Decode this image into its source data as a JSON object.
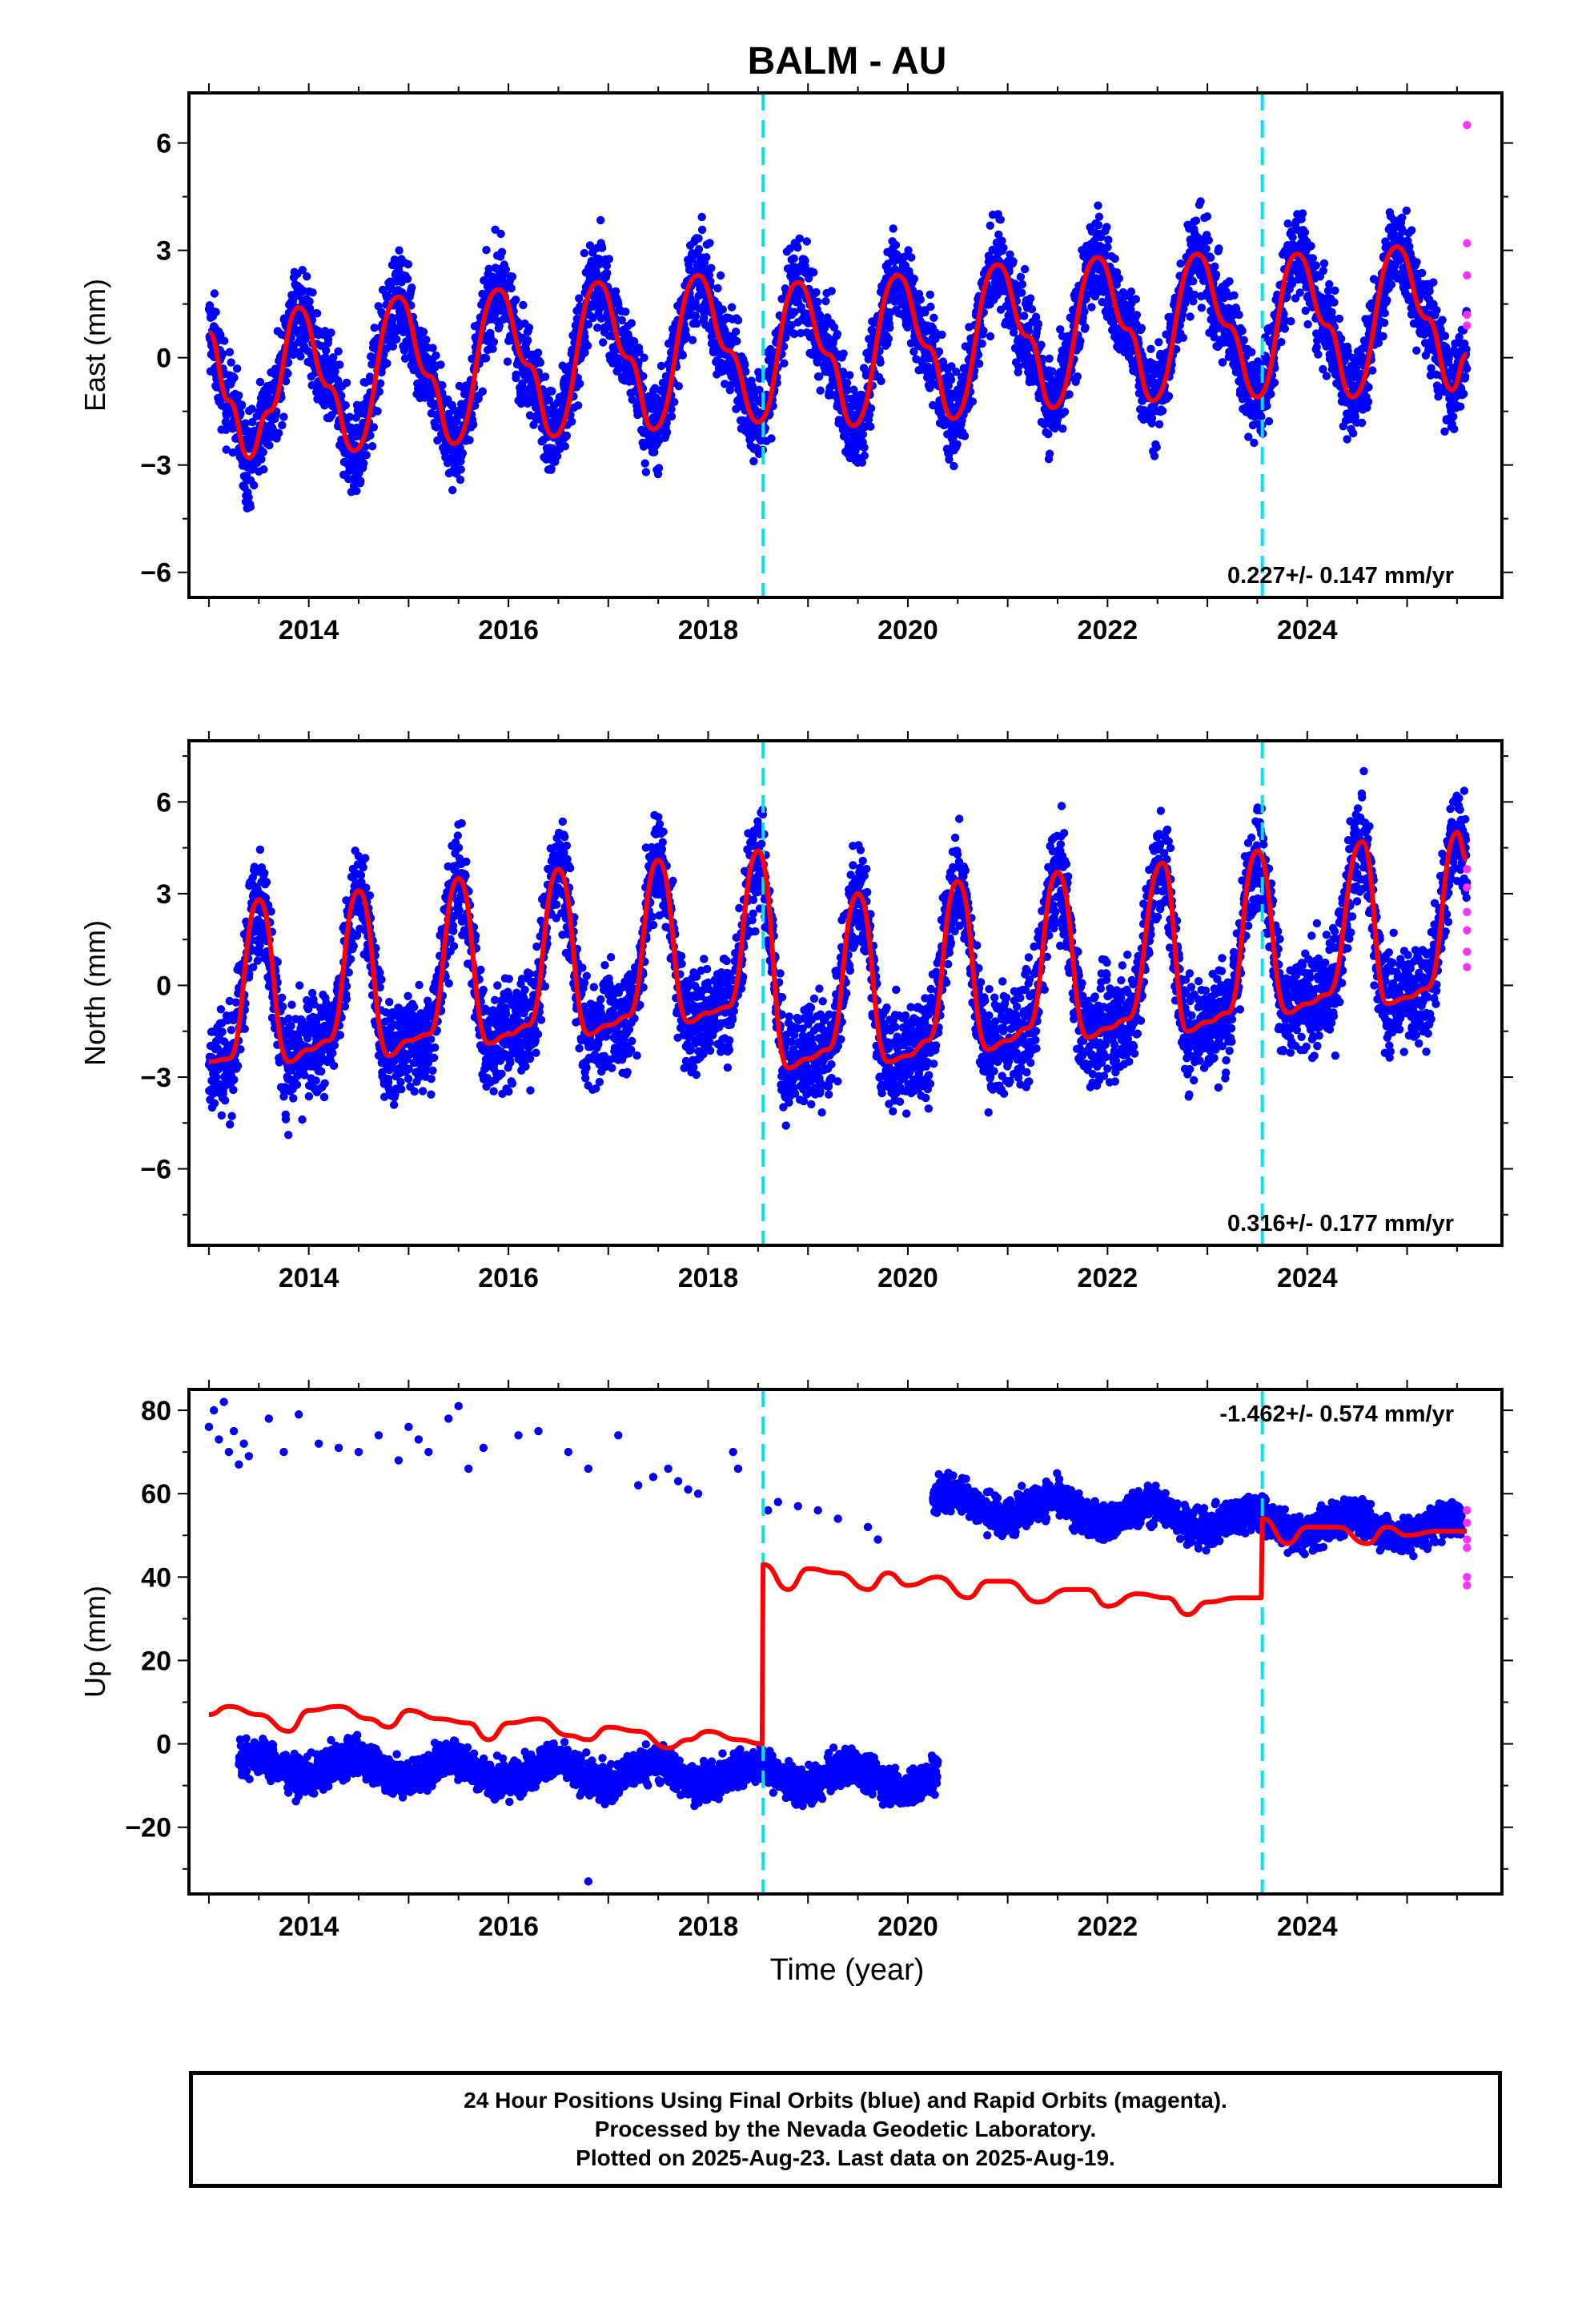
{
  "title": "BALM - AU",
  "xlabel": "Time (year)",
  "colors": {
    "final_orbits": "#0000ff",
    "rapid_orbits": "#ff33ff",
    "model": "#ff0000",
    "offsets": "#00e5ee"
  },
  "footer": {
    "line1": "24 Hour Positions Using Final Orbits (blue) and Rapid Orbits (magenta).",
    "line2": "Processed by the Nevada Geodetic Laboratory.",
    "line3": "Plotted on 2025-Aug-23. Last data on 2025-Aug-19."
  },
  "chart_data": [
    {
      "type": "scatter",
      "ylabel": "East (mm)",
      "rate_label": "0.227+/- 0.147 mm/yr",
      "xlim": [
        2012.8,
        2025.95
      ],
      "ylim": [
        -6.7,
        7.4
      ],
      "xticks": [
        2014,
        2016,
        2018,
        2020,
        2022,
        2024
      ],
      "yticks": [
        -6,
        -3,
        0,
        3,
        6
      ],
      "offsets": [
        2018.55,
        2023.55
      ],
      "series": [
        {
          "role": "final_orbits",
          "x_range": [
            2013.0,
            2025.55
          ],
          "seasonal": {
            "annual_amp": 2.1,
            "phase_peak": 0.9,
            "noise": 0.9
          },
          "segments": [
            {
              "start": 2013.0,
              "end": 2025.6,
              "offset": -0.6,
              "rate": 0.227
            }
          ]
        },
        {
          "role": "rapid_orbits",
          "x": [
            2025.6,
            2025.6,
            2025.6,
            2025.6,
            2025.6
          ],
          "y": [
            6.5,
            3.2,
            2.3,
            1.2,
            0.9
          ]
        },
        {
          "role": "model",
          "x": [
            2013.0,
            2013.2,
            2013.4,
            2013.6,
            2013.9,
            2014.2,
            2014.45,
            2014.9,
            2015.2,
            2015.45,
            2015.9,
            2016.2,
            2016.45,
            2016.9,
            2017.2,
            2017.45,
            2017.9,
            2018.2,
            2018.5,
            2018.9,
            2019.2,
            2019.45,
            2019.9,
            2020.2,
            2020.45,
            2020.9,
            2021.2,
            2021.45,
            2021.9,
            2022.2,
            2022.45,
            2022.9,
            2023.2,
            2023.5,
            2023.9,
            2024.2,
            2024.45,
            2024.9,
            2025.2,
            2025.45,
            2025.6
          ],
          "y": [
            0.7,
            -1.2,
            -2.8,
            -1.5,
            1.4,
            -0.8,
            -2.6,
            1.7,
            -0.5,
            -2.4,
            1.9,
            -0.2,
            -2.2,
            2.1,
            0.0,
            -2.0,
            2.3,
            0.2,
            -1.8,
            2.1,
            0.1,
            -1.9,
            2.3,
            0.3,
            -1.7,
            2.6,
            0.6,
            -1.4,
            2.8,
            0.8,
            -1.2,
            2.9,
            0.9,
            -1.1,
            2.9,
            0.9,
            -1.1,
            3.1,
            1.1,
            -0.9,
            0.1
          ]
        }
      ]
    },
    {
      "type": "scatter",
      "ylabel": "North (mm)",
      "rate_label": "0.316+/- 0.177 mm/yr",
      "xlim": [
        2012.8,
        2025.95
      ],
      "ylim": [
        -8.5,
        8.0
      ],
      "xticks": [
        2014,
        2016,
        2018,
        2020,
        2022,
        2024
      ],
      "yticks": [
        -6,
        -3,
        0,
        3,
        6
      ],
      "offsets": [
        2018.55,
        2023.55
      ],
      "series": [
        {
          "role": "final_orbits",
          "x_range": [
            2013.0,
            2025.55
          ],
          "seasonal": {
            "annual_amp": 3.0,
            "phase_peak": 0.5,
            "noise": 1.2
          },
          "segments": [
            {
              "start": 2013.0,
              "end": 2025.6,
              "offset": -0.4,
              "rate": 0.316
            }
          ]
        },
        {
          "role": "rapid_orbits",
          "x": [
            2025.6,
            2025.6,
            2025.6,
            2025.6,
            2025.6,
            2025.6
          ],
          "y": [
            3.8,
            3.2,
            2.4,
            1.8,
            1.1,
            0.6
          ]
        },
        {
          "role": "model",
          "x": [
            2013.0,
            2013.2,
            2013.5,
            2013.8,
            2014.0,
            2014.2,
            2014.5,
            2014.8,
            2015.0,
            2015.2,
            2015.5,
            2015.8,
            2016.0,
            2016.2,
            2016.5,
            2016.8,
            2017.0,
            2017.2,
            2017.5,
            2017.8,
            2018.0,
            2018.2,
            2018.5,
            2018.8,
            2019.0,
            2019.2,
            2019.5,
            2019.8,
            2020.0,
            2020.2,
            2020.5,
            2020.8,
            2021.0,
            2021.2,
            2021.5,
            2021.8,
            2022.0,
            2022.2,
            2022.55,
            2022.8,
            2023.0,
            2023.2,
            2023.5,
            2023.8,
            2024.0,
            2024.2,
            2024.55,
            2024.8,
            2025.0,
            2025.2,
            2025.5,
            2025.6
          ],
          "y": [
            -2.5,
            -2.4,
            2.8,
            -2.5,
            -2.1,
            -1.8,
            3.1,
            -2.3,
            -1.8,
            -1.6,
            3.5,
            -1.9,
            -1.6,
            -1.3,
            3.8,
            -1.6,
            -1.3,
            -1.0,
            4.1,
            -1.2,
            -0.9,
            -0.7,
            4.4,
            -2.7,
            -2.4,
            -2.1,
            3.0,
            -2.5,
            -2.3,
            -1.8,
            3.4,
            -2.1,
            -1.8,
            -1.4,
            3.7,
            -1.7,
            -1.4,
            -1.1,
            4.0,
            -1.5,
            -1.2,
            -0.9,
            4.4,
            -0.9,
            -0.6,
            -0.3,
            4.7,
            -0.6,
            -0.4,
            -0.1,
            5.0,
            4.1
          ]
        }
      ]
    },
    {
      "type": "scatter",
      "ylabel": "Up (mm)",
      "rate_label": "-1.462+/- 0.574 mm/yr",
      "xlim": [
        2012.8,
        2025.95
      ],
      "ylim": [
        -36,
        85
      ],
      "xticks": [
        2014,
        2016,
        2018,
        2020,
        2022,
        2024
      ],
      "yticks": [
        -20,
        0,
        20,
        40,
        60,
        80
      ],
      "offsets": [
        2018.55,
        2023.55
      ],
      "series": [
        {
          "role": "final_orbits",
          "x_range": [
            2013.0,
            2025.55
          ],
          "seasonal": {
            "annual_amp": 2.5,
            "phase_peak": 0.2,
            "noise": 3.0
          },
          "segments": [
            {
              "start": 2013.3,
              "end": 2020.3,
              "offset": -5.0,
              "rate": -0.5
            },
            {
              "start": 2020.25,
              "end": 2023.55,
              "offset": 58.0,
              "rate": -1.5
            },
            {
              "start": 2023.55,
              "end": 2025.55,
              "offset": 53.0,
              "rate": -0.8
            }
          ],
          "outliers": {
            "x": [
              2013.0,
              2013.05,
              2013.1,
              2013.15,
              2013.2,
              2013.25,
              2013.3,
              2013.35,
              2013.4,
              2013.6,
              2013.75,
              2013.9,
              2014.1,
              2014.3,
              2014.5,
              2014.7,
              2014.9,
              2015.0,
              2015.1,
              2015.2,
              2015.4,
              2015.5,
              2015.6,
              2015.75,
              2016.1,
              2016.3,
              2016.6,
              2016.8,
              2017.1,
              2017.3,
              2017.45,
              2017.6,
              2017.7,
              2017.8,
              2017.9,
              2018.25,
              2018.3,
              2018.6,
              2018.7,
              2018.9,
              2019.1,
              2019.3,
              2019.6,
              2019.7,
              2016.8
            ],
            "y": [
              76,
              80,
              73,
              82,
              70,
              75,
              67,
              72,
              69,
              78,
              70,
              79,
              72,
              71,
              70,
              74,
              68,
              76,
              73,
              70,
              78,
              81,
              66,
              71,
              74,
              75,
              70,
              66,
              74,
              62,
              64,
              66,
              63,
              61,
              60,
              70,
              66,
              56,
              58,
              57,
              56,
              54,
              52,
              49,
              -33
            ]
          }
        },
        {
          "role": "rapid_orbits",
          "x": [
            2025.6,
            2025.6,
            2025.6,
            2025.6,
            2025.6,
            2025.6
          ],
          "y": [
            56,
            53,
            49,
            47,
            40,
            38
          ]
        },
        {
          "role": "model",
          "x": [
            2013.0,
            2013.2,
            2013.5,
            2013.8,
            2014.0,
            2014.3,
            2014.6,
            2014.8,
            2015.0,
            2015.3,
            2015.6,
            2015.8,
            2016.0,
            2016.3,
            2016.6,
            2016.8,
            2017.0,
            2017.3,
            2017.6,
            2017.8,
            2018.0,
            2018.3,
            2018.54,
            2018.55,
            2018.56,
            2018.8,
            2019.0,
            2019.3,
            2019.6,
            2019.8,
            2020.0,
            2020.3,
            2020.6,
            2020.8,
            2021.0,
            2021.3,
            2021.6,
            2021.8,
            2022.0,
            2022.3,
            2022.6,
            2022.8,
            2023.0,
            2023.3,
            2023.54,
            2023.55,
            2023.56,
            2023.8,
            2024.0,
            2024.3,
            2024.6,
            2024.8,
            2025.0,
            2025.3,
            2025.6
          ],
          "y": [
            7,
            9,
            7,
            3,
            8,
            9,
            6,
            4,
            8,
            6,
            5,
            1,
            5,
            6,
            2,
            1,
            4,
            3,
            -1,
            1,
            3,
            1,
            0,
            43,
            43,
            37,
            42,
            41,
            37,
            41,
            38,
            40,
            35,
            39,
            39,
            34,
            37,
            37,
            33,
            36,
            35,
            31,
            34,
            35,
            35,
            54,
            54,
            48,
            52,
            52,
            48,
            52,
            50,
            51,
            51
          ]
        }
      ]
    }
  ]
}
